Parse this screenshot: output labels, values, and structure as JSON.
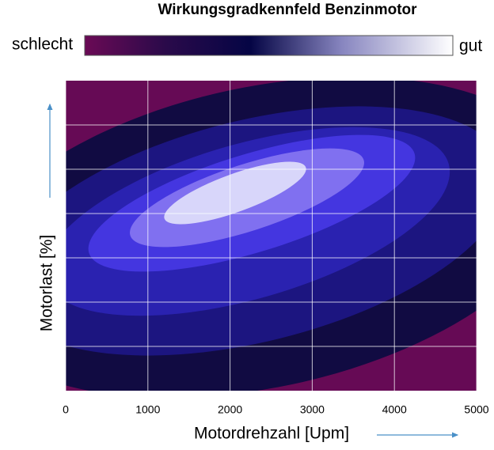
{
  "chart_data": {
    "type": "contour",
    "title": "Wirkungsgradkennfeld Benzinmotor",
    "colorbar_low_label": "schlecht",
    "colorbar_high_label": "gut",
    "x_label": "Motordrehzahl [Upm]",
    "y_label": "Motorlast [%]",
    "xlim": [
      0,
      5000
    ],
    "xticks": [
      0,
      1000,
      2000,
      3000,
      4000,
      5000
    ],
    "grid": true
  }
}
